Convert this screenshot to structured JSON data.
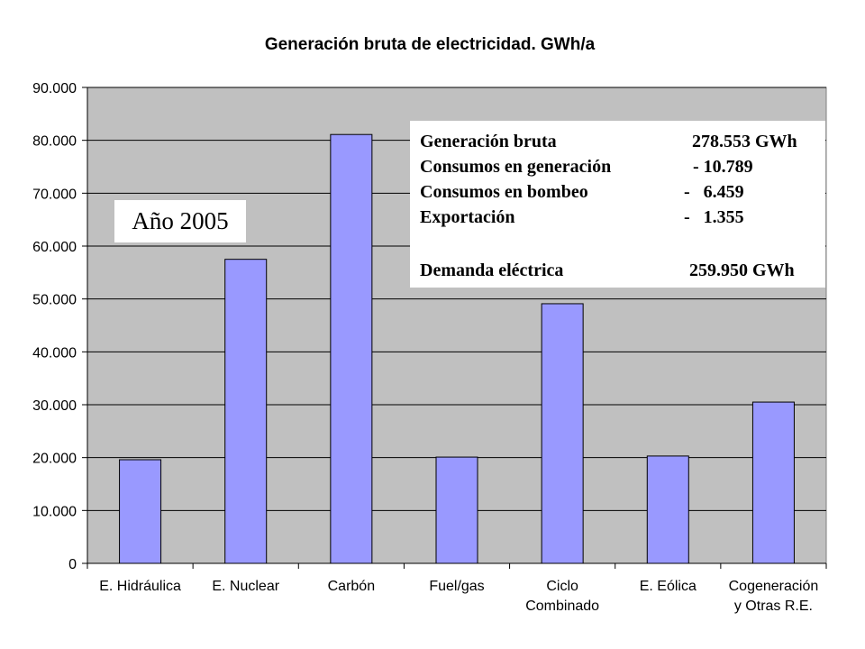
{
  "chart_data": {
    "type": "bar",
    "title": "Generación bruta de electricidad. GWh/a",
    "categories": [
      [
        "E. Hidráulica"
      ],
      [
        "E. Nuclear"
      ],
      [
        "Carbón"
      ],
      [
        "Fuel/gas"
      ],
      [
        "Ciclo",
        "Combinado"
      ],
      [
        "E. Eólica"
      ],
      [
        "Cogeneración",
        "y Otras R.E."
      ]
    ],
    "values": [
      19600,
      57500,
      81100,
      20100,
      49100,
      20300,
      30500
    ],
    "ylim": [
      0,
      90000
    ],
    "yticks": [
      "0",
      "10.000",
      "20.000",
      "30.000",
      "40.000",
      "50.000",
      "60.000",
      "70.000",
      "80.000",
      "90.000"
    ],
    "ytick_values": [
      0,
      10000,
      20000,
      30000,
      40000,
      50000,
      60000,
      70000,
      80000,
      90000
    ],
    "grid": true,
    "colors": {
      "bar": "#9999ff",
      "plot_bg": "#c0c0c0",
      "grid": "#000000"
    }
  },
  "annotation_year": "Año 2005",
  "summary_box": {
    "rows": [
      {
        "label": "Generación bruta",
        "value": "278.553 GWh"
      },
      {
        "label": "Consumos en generación",
        "value": "- 10.789"
      },
      {
        "label": "Consumos en bombeo",
        "value": "-   6.459"
      },
      {
        "label": "Exportación",
        "value": "-   1.355"
      },
      {
        "label": "Demanda eléctrica",
        "value": "259.950 GWh"
      }
    ]
  }
}
